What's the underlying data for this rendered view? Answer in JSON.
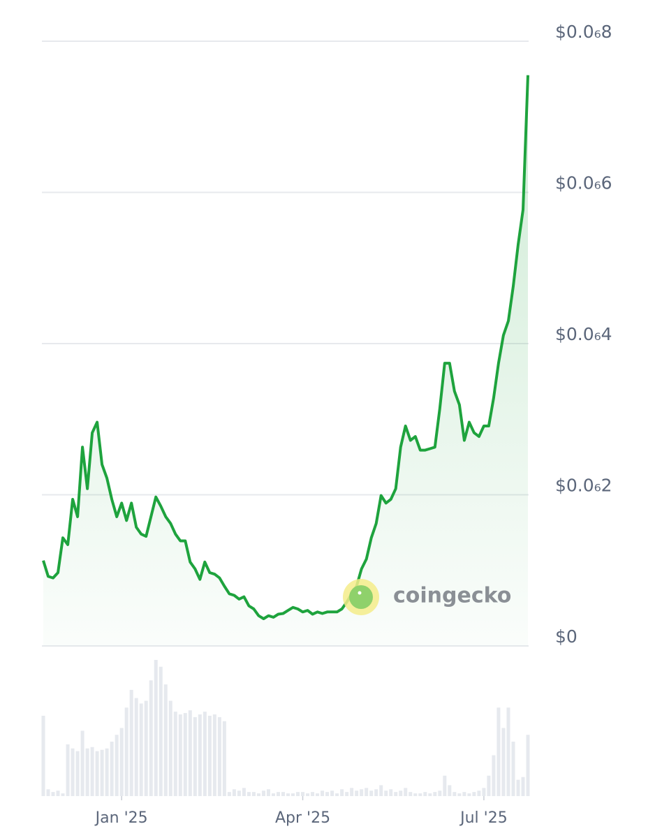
{
  "chart_data": {
    "type": "line",
    "categories": [
      null,
      null,
      null,
      null,
      null,
      null,
      null,
      null,
      null,
      null,
      null,
      null,
      null,
      null,
      null,
      null,
      "Jan '25",
      null,
      null,
      null,
      null,
      null,
      null,
      null,
      null,
      null,
      null,
      null,
      null,
      null,
      null,
      null,
      null,
      null,
      null,
      null,
      null,
      null,
      null,
      null,
      null,
      null,
      null,
      null,
      null,
      null,
      null,
      null,
      null,
      null,
      null,
      null,
      null,
      "Apr '25",
      null,
      null,
      null,
      null,
      null,
      null,
      null,
      null,
      null,
      null,
      null,
      null,
      null,
      null,
      null,
      null,
      null,
      null,
      null,
      null,
      null,
      null,
      null,
      null,
      null,
      null,
      null,
      null,
      null,
      null,
      null,
      null,
      null,
      null,
      null,
      null,
      "Jul '25",
      null,
      null,
      null,
      null,
      null,
      null,
      null,
      null,
      null
    ],
    "values": [
      1.13e-07,
      9.2e-08,
      9e-08,
      9.7e-08,
      1.43e-07,
      1.34e-07,
      1.94e-07,
      1.71e-07,
      2.63e-07,
      2.08e-07,
      2.82e-07,
      2.96e-07,
      2.4e-07,
      2.22e-07,
      1.94e-07,
      1.71e-07,
      1.89e-07,
      1.66e-07,
      1.89e-07,
      1.57e-07,
      1.48e-07,
      1.45e-07,
      1.71e-07,
      1.97e-07,
      1.85e-07,
      1.71e-07,
      1.62e-07,
      1.48e-07,
      1.39e-07,
      1.39e-07,
      1.11e-07,
      1.02e-07,
      8.8e-08,
      1.11e-07,
      9.7e-08,
      9.5e-08,
      9e-08,
      7.9e-08,
      6.9e-08,
      6.7e-08,
      6.2e-08,
      6.5e-08,
      5.3e-08,
      4.9e-08,
      4e-08,
      3.6e-08,
      4e-08,
      3.8e-08,
      4.2e-08,
      4.3e-08,
      4.7e-08,
      5.1e-08,
      4.9e-08,
      4.5e-08,
      4.7e-08,
      4.2e-08,
      4.5e-08,
      4.3e-08,
      4.5e-08,
      4.5e-08,
      4.5e-08,
      4.9e-08,
      5.8e-08,
      6.9e-08,
      7.9e-08,
      1.02e-07,
      1.15e-07,
      1.43e-07,
      1.62e-07,
      1.99e-07,
      1.89e-07,
      1.94e-07,
      2.08e-07,
      2.63e-07,
      2.91e-07,
      2.72e-07,
      2.77e-07,
      2.59e-07,
      2.59e-07,
      2.61e-07,
      2.63e-07,
      3.14e-07,
      3.74e-07,
      3.74e-07,
      3.37e-07,
      3.19e-07,
      2.72e-07,
      2.96e-07,
      2.82e-07,
      2.77e-07,
      2.91e-07,
      2.91e-07,
      3.28e-07,
      3.74e-07,
      4.11e-07,
      4.3e-07,
      4.76e-07,
      5.31e-07,
      5.77e-07,
      7.55e-07
    ],
    "volume": [
      59,
      5,
      3,
      4,
      2,
      38,
      35,
      33,
      48,
      35,
      36,
      33,
      34,
      35,
      40,
      45,
      50,
      65,
      78,
      72,
      68,
      70,
      85,
      100,
      95,
      82,
      70,
      62,
      60,
      61,
      63,
      58,
      60,
      62,
      59,
      60,
      58,
      55,
      3,
      5,
      4,
      6,
      3,
      3,
      2,
      4,
      5,
      2,
      3,
      3,
      2,
      2,
      3,
      3,
      2,
      3,
      2,
      4,
      3,
      4,
      2,
      5,
      3,
      6,
      4,
      5,
      6,
      4,
      5,
      8,
      4,
      5,
      3,
      4,
      6,
      3,
      2,
      2,
      3,
      2,
      3,
      4,
      15,
      8,
      3,
      2,
      3,
      2,
      3,
      4,
      6,
      15,
      30,
      65,
      50,
      65,
      40,
      12,
      14,
      45
    ],
    "color": "#1ea33d",
    "volume_color": "#e6e9ee",
    "ylim": [
      0,
      8e-07
    ],
    "yticks": [
      {
        "value": 0,
        "label": "$0"
      },
      {
        "value": 2e-07,
        "label": "$0.0₆2"
      },
      {
        "value": 4e-07,
        "label": "$0.0₆4"
      },
      {
        "value": 6e-07,
        "label": "$0.0₆6"
      },
      {
        "value": 8e-07,
        "label": "$0.0₆8"
      }
    ],
    "grid": true,
    "watermark": "coingecko"
  }
}
